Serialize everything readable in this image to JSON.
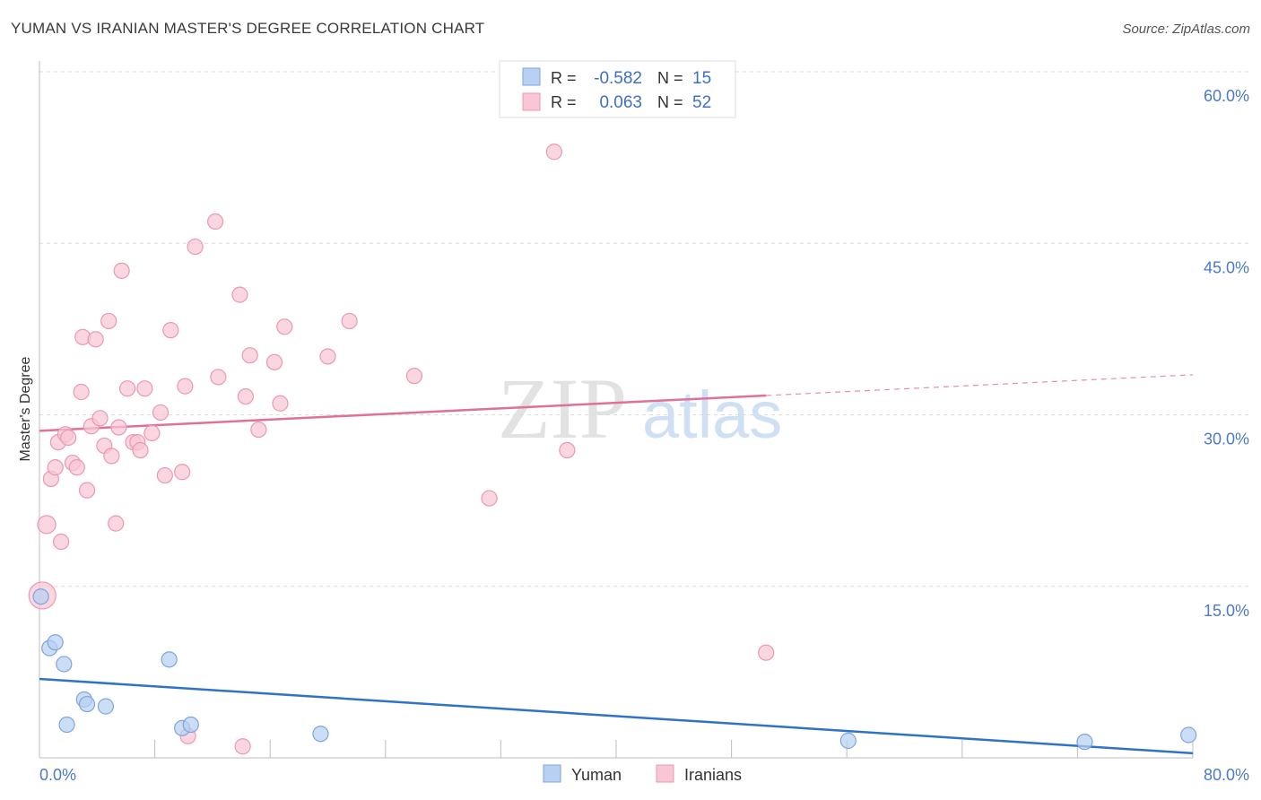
{
  "header": {
    "title": "YUMAN VS IRANIAN MASTER'S DEGREE CORRELATION CHART",
    "source": "Source: ZipAtlas.com"
  },
  "watermark": {
    "part1": "ZIP",
    "part2": "atlas"
  },
  "chart_data": {
    "type": "scatter",
    "ylabel": "Master's Degree",
    "xlim": [
      0,
      80
    ],
    "ylim": [
      0,
      60
    ],
    "x_tick_labels": [
      "0.0%",
      "80.0%"
    ],
    "y_ticks": [
      15,
      30,
      45,
      60
    ],
    "y_tick_labels": [
      "15.0%",
      "30.0%",
      "45.0%",
      "60.0%"
    ],
    "grid": "horizontal-dashed",
    "legend_top": [
      {
        "r_label": "R =",
        "r_value": "-0.582",
        "n_label": "N =",
        "n_value": "15"
      },
      {
        "r_label": "R =",
        "r_value": "0.063",
        "n_label": "N =",
        "n_value": "52"
      }
    ],
    "legend_bottom": [
      "Yuman",
      "Iranians"
    ],
    "colors": {
      "yuman_fill": "#b8d0f2",
      "yuman_stroke": "#7ea5de",
      "yuman_line": "#2f73c9",
      "iranians_fill": "#f8c6d4",
      "iranians_stroke": "#eb98b1",
      "iranians_line": "#e0709a",
      "tick_label": "#4a7ac8"
    },
    "series": [
      {
        "name": "Yuman",
        "points": [
          [
            0.1,
            14.1
          ],
          [
            0.7,
            9.6
          ],
          [
            1.1,
            10.1
          ],
          [
            1.7,
            8.2
          ],
          [
            1.9,
            2.9
          ],
          [
            3.1,
            5.1
          ],
          [
            3.3,
            4.7
          ],
          [
            4.6,
            4.5
          ],
          [
            9.0,
            8.6
          ],
          [
            9.9,
            2.6
          ],
          [
            10.5,
            2.9
          ],
          [
            19.5,
            2.1
          ],
          [
            56.1,
            1.5
          ],
          [
            72.5,
            1.4
          ],
          [
            79.7,
            2.0
          ]
        ],
        "trend": {
          "x": [
            0,
            80
          ],
          "y": [
            6.9,
            0.4
          ],
          "solid_until": 80
        }
      },
      {
        "name": "Iranians",
        "points": [
          [
            0.2,
            14.2
          ],
          [
            0.5,
            20.4
          ],
          [
            0.8,
            24.4
          ],
          [
            1.1,
            25.4
          ],
          [
            1.3,
            27.6
          ],
          [
            1.5,
            18.9
          ],
          [
            1.8,
            28.3
          ],
          [
            2.0,
            28.0
          ],
          [
            2.3,
            25.8
          ],
          [
            2.6,
            25.4
          ],
          [
            2.9,
            32.0
          ],
          [
            3.0,
            36.8
          ],
          [
            3.3,
            23.4
          ],
          [
            3.6,
            29.0
          ],
          [
            3.9,
            36.6
          ],
          [
            4.2,
            29.7
          ],
          [
            4.5,
            27.3
          ],
          [
            4.8,
            38.2
          ],
          [
            5.0,
            26.4
          ],
          [
            5.3,
            20.5
          ],
          [
            5.5,
            28.9
          ],
          [
            5.7,
            42.6
          ],
          [
            6.1,
            32.3
          ],
          [
            6.5,
            27.6
          ],
          [
            6.8,
            27.6
          ],
          [
            7.0,
            26.9
          ],
          [
            7.3,
            32.3
          ],
          [
            7.8,
            28.4
          ],
          [
            8.4,
            30.2
          ],
          [
            8.7,
            24.7
          ],
          [
            9.1,
            37.4
          ],
          [
            9.9,
            25.0
          ],
          [
            10.1,
            32.5
          ],
          [
            10.3,
            1.9
          ],
          [
            10.8,
            44.7
          ],
          [
            12.2,
            46.9
          ],
          [
            12.4,
            33.3
          ],
          [
            13.9,
            40.5
          ],
          [
            14.1,
            1.0
          ],
          [
            14.3,
            31.6
          ],
          [
            14.6,
            35.2
          ],
          [
            15.2,
            28.7
          ],
          [
            16.3,
            34.6
          ],
          [
            16.7,
            31.0
          ],
          [
            17.0,
            37.7
          ],
          [
            20.0,
            35.1
          ],
          [
            21.5,
            38.2
          ],
          [
            26.0,
            33.4
          ],
          [
            31.2,
            22.7
          ],
          [
            35.7,
            53.0
          ],
          [
            36.6,
            26.9
          ],
          [
            50.4,
            9.2
          ]
        ],
        "trend": {
          "x": [
            0,
            80
          ],
          "y": [
            28.6,
            33.5
          ],
          "solid_until": 50.4
        }
      }
    ]
  }
}
